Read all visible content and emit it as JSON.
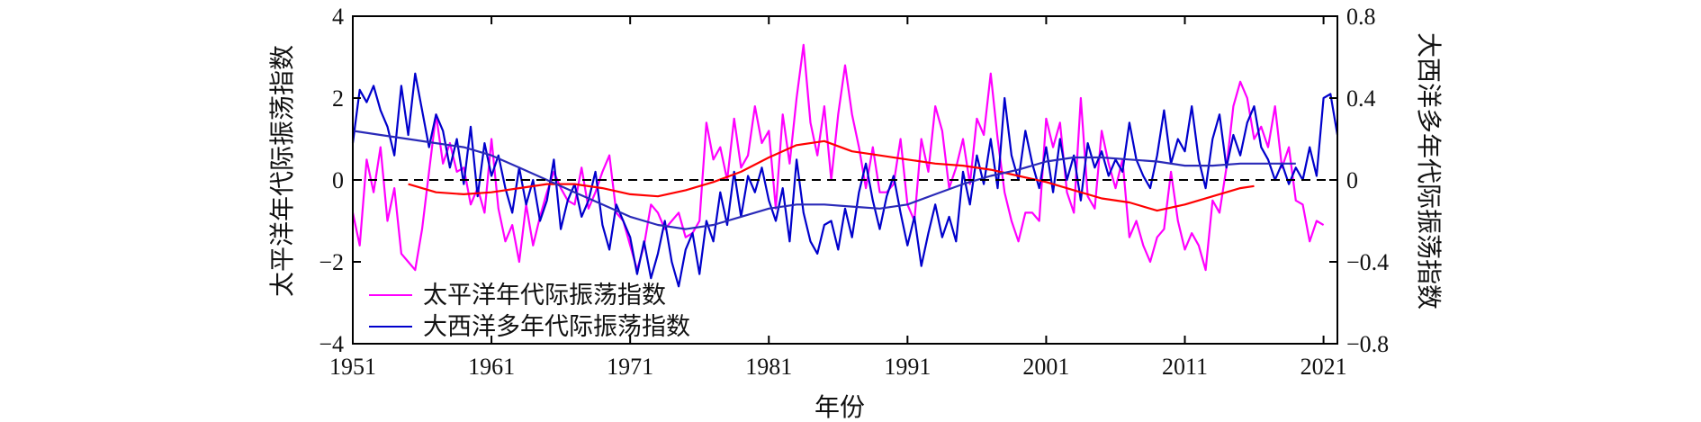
{
  "chart_data": {
    "type": "line",
    "xlabel": "年份",
    "ylabel_left": "太平洋年代际振荡指数",
    "ylabel_right": "大西洋多年代际振荡指数",
    "xlim": [
      1951,
      2022
    ],
    "ylim_left": [
      -4,
      4
    ],
    "ylim_right": [
      -0.8,
      0.8
    ],
    "x_ticks": [
      1951,
      1961,
      1971,
      1981,
      1991,
      2001,
      2011,
      2021
    ],
    "x_tick_labels": [
      "1951",
      "1961",
      "1971",
      "1981",
      "1991",
      "2001",
      "2011",
      "2021"
    ],
    "y_left_ticks": [
      4,
      2,
      0,
      -2,
      -4
    ],
    "y_left_tick_labels": [
      "4",
      "2",
      "0",
      "−2",
      "−4"
    ],
    "y_right_ticks": [
      0.8,
      0.4,
      0,
      -0.4,
      -0.8
    ],
    "y_right_tick_labels": [
      "0.8",
      "0.4",
      "0",
      "−0.4",
      "−0.8"
    ],
    "zero_line": {
      "value": 0,
      "style": "dashed",
      "color": "#000000"
    },
    "legend": {
      "placement": "bottom-left",
      "entries": [
        {
          "label": "太平洋年代际振荡指数",
          "color": "#ff00ff"
        },
        {
          "label": "大西洋多年代际振荡指数",
          "color": "#0000cc"
        }
      ]
    },
    "series": [
      {
        "name": "太平洋年代际振荡指数",
        "axis": "left",
        "color": "#ff00ff",
        "x": [
          1951.0,
          1951.5,
          1952.0,
          1952.5,
          1953.0,
          1953.5,
          1954.0,
          1954.5,
          1955.0,
          1955.5,
          1956.0,
          1956.5,
          1957.0,
          1957.5,
          1958.0,
          1958.5,
          1959.0,
          1959.5,
          1960.0,
          1960.5,
          1961.0,
          1961.5,
          1962.0,
          1962.5,
          1963.0,
          1963.5,
          1964.0,
          1964.5,
          1965.0,
          1965.5,
          1966.0,
          1966.5,
          1967.0,
          1967.5,
          1968.0,
          1968.5,
          1969.0,
          1969.5,
          1970.0,
          1970.5,
          1971.0,
          1971.5,
          1972.0,
          1972.5,
          1973.0,
          1973.5,
          1974.0,
          1974.5,
          1975.0,
          1975.5,
          1976.0,
          1976.5,
          1977.0,
          1977.5,
          1978.0,
          1978.5,
          1979.0,
          1979.5,
          1980.0,
          1980.5,
          1981.0,
          1981.5,
          1982.0,
          1982.5,
          1983.0,
          1983.5,
          1984.0,
          1984.5,
          1985.0,
          1985.5,
          1986.0,
          1986.5,
          1987.0,
          1987.5,
          1988.0,
          1988.5,
          1989.0,
          1989.5,
          1990.0,
          1990.5,
          1991.0,
          1991.5,
          1992.0,
          1992.5,
          1993.0,
          1993.5,
          1994.0,
          1994.5,
          1995.0,
          1995.5,
          1996.0,
          1996.5,
          1997.0,
          1997.5,
          1998.0,
          1998.5,
          1999.0,
          1999.5,
          2000.0,
          2000.5,
          2001.0,
          2001.5,
          2002.0,
          2002.5,
          2003.0,
          2003.5,
          2004.0,
          2004.5,
          2005.0,
          2005.5,
          2006.0,
          2006.5,
          2007.0,
          2007.5,
          2008.0,
          2008.5,
          2009.0,
          2009.5,
          2010.0,
          2010.5,
          2011.0,
          2011.5,
          2012.0,
          2012.5,
          2013.0,
          2013.5,
          2014.0,
          2014.5,
          2015.0,
          2015.5,
          2016.0,
          2016.5,
          2017.0,
          2017.5,
          2018.0,
          2018.5,
          2019.0,
          2019.5,
          2020.0,
          2020.5,
          2021.0
        ],
        "values": [
          -0.8,
          -1.6,
          0.5,
          -0.3,
          0.8,
          -1.0,
          -0.2,
          -1.8,
          -2.0,
          -2.2,
          -1.2,
          0.2,
          1.6,
          0.4,
          0.9,
          0.2,
          0.3,
          -0.6,
          -0.2,
          -0.8,
          1.0,
          -0.7,
          -1.5,
          -1.1,
          -2.0,
          -0.6,
          -1.6,
          -0.9,
          -0.3,
          0.2,
          -0.2,
          -0.5,
          -0.6,
          0.3,
          -0.7,
          -0.3,
          0.2,
          0.6,
          -0.8,
          -1.0,
          -1.6,
          -2.2,
          -1.6,
          -0.6,
          -0.8,
          -1.2,
          -1.0,
          -0.8,
          -1.4,
          -1.3,
          -1.0,
          1.4,
          0.5,
          0.8,
          0.0,
          1.5,
          0.3,
          0.6,
          1.8,
          0.9,
          1.2,
          -0.7,
          1.6,
          0.4,
          2.0,
          3.3,
          1.4,
          0.6,
          1.8,
          0.0,
          1.6,
          2.8,
          1.6,
          0.8,
          -0.2,
          0.8,
          -0.3,
          -0.3,
          -0.1,
          1.0,
          -0.6,
          -1.0,
          1.0,
          0.2,
          1.8,
          1.2,
          -0.2,
          0.3,
          1.0,
          -0.1,
          1.5,
          1.1,
          2.6,
          1.0,
          -0.3,
          -1.0,
          -1.5,
          -0.8,
          -0.8,
          -1.0,
          1.5,
          0.8,
          1.4,
          -0.3,
          -0.8,
          2.0,
          -0.4,
          -0.7,
          1.2,
          0.4,
          -0.2,
          0.5,
          -1.4,
          -1.0,
          -1.6,
          -2.0,
          -1.4,
          -1.2,
          0.2,
          -1.0,
          -1.7,
          -1.3,
          -1.6,
          -2.2,
          -0.5,
          -0.8,
          0.3,
          1.8,
          2.4,
          2.0,
          1.0,
          1.3,
          0.8,
          1.8,
          0.3,
          0.8,
          -0.5,
          -0.6,
          -1.5,
          -1.0,
          -1.1
        ]
      },
      {
        "name": "大西洋多年代际振荡指数",
        "axis": "right",
        "color": "#0000cc",
        "x": [
          1951.0,
          1951.5,
          1952.0,
          1952.5,
          1953.0,
          1953.5,
          1954.0,
          1954.5,
          1955.0,
          1955.5,
          1956.0,
          1956.5,
          1957.0,
          1957.5,
          1958.0,
          1958.5,
          1959.0,
          1959.5,
          1960.0,
          1960.5,
          1961.0,
          1961.5,
          1962.0,
          1962.5,
          1963.0,
          1963.5,
          1964.0,
          1964.5,
          1965.0,
          1965.5,
          1966.0,
          1966.5,
          1967.0,
          1967.5,
          1968.0,
          1968.5,
          1969.0,
          1969.5,
          1970.0,
          1970.5,
          1971.0,
          1971.5,
          1972.0,
          1972.5,
          1973.0,
          1973.5,
          1974.0,
          1974.5,
          1975.0,
          1975.5,
          1976.0,
          1976.5,
          1977.0,
          1977.5,
          1978.0,
          1978.5,
          1979.0,
          1979.5,
          1980.0,
          1980.5,
          1981.0,
          1981.5,
          1982.0,
          1982.5,
          1983.0,
          1983.5,
          1984.0,
          1984.5,
          1985.0,
          1985.5,
          1986.0,
          1986.5,
          1987.0,
          1987.5,
          1988.0,
          1988.5,
          1989.0,
          1989.5,
          1990.0,
          1990.5,
          1991.0,
          1991.5,
          1992.0,
          1992.5,
          1993.0,
          1993.5,
          1994.0,
          1994.5,
          1995.0,
          1995.5,
          1996.0,
          1996.5,
          1997.0,
          1997.5,
          1998.0,
          1998.5,
          1999.0,
          1999.5,
          2000.0,
          2000.5,
          2001.0,
          2001.5,
          2002.0,
          2002.5,
          2003.0,
          2003.5,
          2004.0,
          2004.5,
          2005.0,
          2005.5,
          2006.0,
          2006.5,
          2007.0,
          2007.5,
          2008.0,
          2008.5,
          2009.0,
          2009.5,
          2010.0,
          2010.5,
          2011.0,
          2011.5,
          2012.0,
          2012.5,
          2013.0,
          2013.5,
          2014.0,
          2014.5,
          2015.0,
          2015.5,
          2016.0,
          2016.5,
          2017.0,
          2017.5,
          2018.0,
          2018.5,
          2019.0,
          2019.5,
          2020.0,
          2020.5,
          2021.0,
          2021.5,
          2022.0
        ],
        "values": [
          0.18,
          0.44,
          0.38,
          0.46,
          0.34,
          0.26,
          0.12,
          0.46,
          0.22,
          0.52,
          0.34,
          0.16,
          0.32,
          0.24,
          0.06,
          0.2,
          -0.02,
          0.26,
          -0.08,
          0.18,
          0.02,
          0.12,
          -0.04,
          -0.16,
          0.06,
          -0.12,
          0.0,
          -0.2,
          -0.1,
          0.1,
          -0.24,
          -0.1,
          -0.02,
          -0.18,
          -0.1,
          0.04,
          -0.22,
          -0.34,
          -0.12,
          -0.2,
          -0.28,
          -0.46,
          -0.3,
          -0.48,
          -0.36,
          -0.2,
          -0.4,
          -0.52,
          -0.34,
          -0.26,
          -0.46,
          -0.2,
          -0.3,
          -0.06,
          -0.22,
          0.04,
          -0.18,
          0.02,
          -0.06,
          0.06,
          -0.1,
          -0.2,
          -0.04,
          -0.3,
          0.1,
          -0.16,
          -0.3,
          -0.36,
          -0.22,
          -0.2,
          -0.34,
          -0.14,
          -0.28,
          -0.06,
          0.08,
          -0.1,
          -0.24,
          -0.08,
          0.02,
          -0.16,
          -0.32,
          -0.18,
          -0.42,
          -0.26,
          -0.12,
          -0.28,
          -0.18,
          -0.3,
          0.04,
          -0.12,
          0.12,
          -0.02,
          0.2,
          -0.04,
          0.4,
          0.12,
          0.0,
          0.24,
          0.08,
          -0.04,
          0.16,
          -0.06,
          0.2,
          0.0,
          0.12,
          -0.1,
          0.18,
          0.06,
          0.14,
          0.02,
          0.1,
          0.04,
          0.28,
          0.1,
          0.02,
          -0.04,
          0.12,
          0.34,
          0.08,
          0.2,
          0.14,
          0.36,
          0.1,
          -0.04,
          0.2,
          0.32,
          0.06,
          0.22,
          0.12,
          0.28,
          0.36,
          0.16,
          0.1,
          0.0,
          0.08,
          -0.02,
          0.06,
          0.0,
          0.16,
          0.02,
          0.4,
          0.42,
          0.22
        ]
      },
      {
        "name": "",
        "axis": "left",
        "color": "#ff0000",
        "x": [
          1955,
          1957,
          1959,
          1961,
          1963,
          1965,
          1967,
          1969,
          1971,
          1973,
          1975,
          1977,
          1979,
          1981,
          1983,
          1985,
          1987,
          1989,
          1991,
          1993,
          1995,
          1997,
          1999,
          2001,
          2003,
          2005,
          2007,
          2009,
          2011,
          2013,
          2015,
          2016
        ],
        "values": [
          -0.1,
          -0.3,
          -0.35,
          -0.3,
          -0.2,
          -0.1,
          -0.1,
          -0.2,
          -0.35,
          -0.4,
          -0.25,
          -0.05,
          0.2,
          0.55,
          0.85,
          0.95,
          0.7,
          0.6,
          0.5,
          0.4,
          0.35,
          0.25,
          0.1,
          -0.05,
          -0.25,
          -0.45,
          -0.55,
          -0.75,
          -0.6,
          -0.4,
          -0.2,
          -0.15
        ]
      },
      {
        "name": "",
        "axis": "right",
        "color": "#2a2ab8",
        "x": [
          1951,
          1953,
          1955,
          1957,
          1959,
          1961,
          1963,
          1965,
          1967,
          1969,
          1971,
          1973,
          1975,
          1977,
          1979,
          1981,
          1983,
          1985,
          1987,
          1989,
          1991,
          1993,
          1995,
          1997,
          1999,
          2001,
          2003,
          2005,
          2007,
          2009,
          2011,
          2013,
          2015,
          2017,
          2019
        ],
        "values": [
          0.24,
          0.22,
          0.2,
          0.18,
          0.16,
          0.12,
          0.06,
          0.0,
          -0.06,
          -0.12,
          -0.18,
          -0.22,
          -0.24,
          -0.22,
          -0.18,
          -0.14,
          -0.12,
          -0.12,
          -0.13,
          -0.14,
          -0.12,
          -0.07,
          -0.02,
          0.02,
          0.05,
          0.09,
          0.11,
          0.11,
          0.1,
          0.09,
          0.07,
          0.07,
          0.08,
          0.08,
          0.08
        ]
      }
    ]
  }
}
